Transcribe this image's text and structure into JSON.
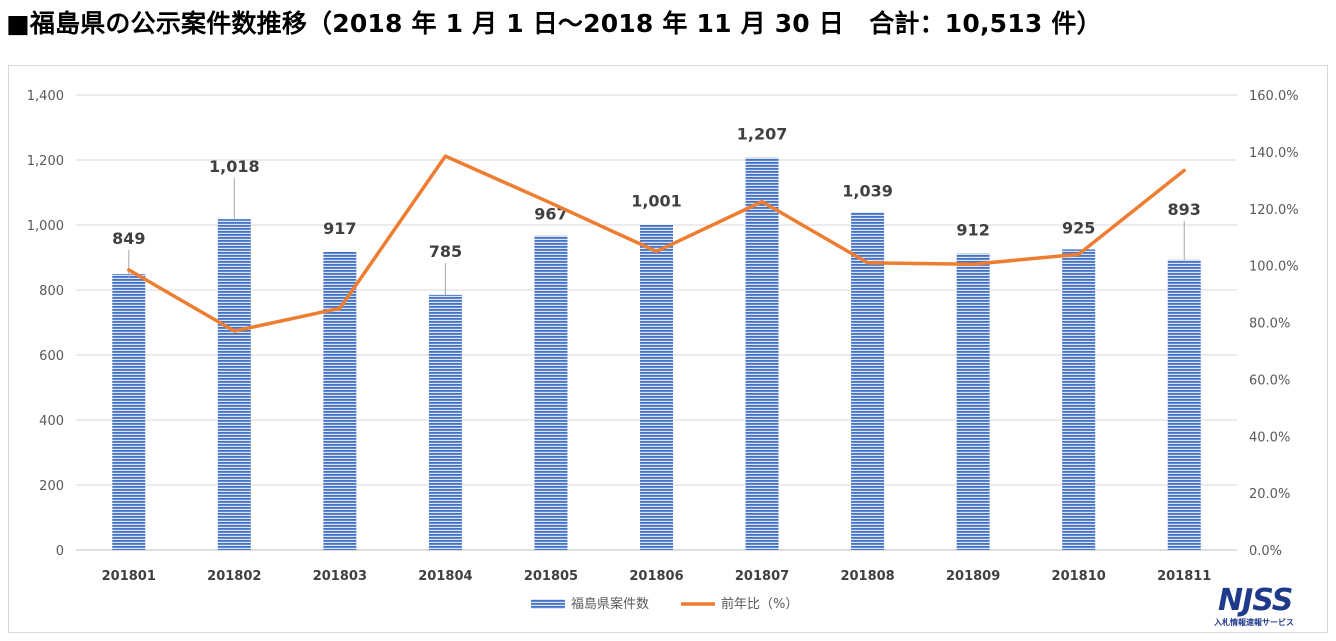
{
  "title": "■福島県の公示案件数推移（2018 年 1 月 1 日～2018 年 11 月 30 日　合計：10,513 件）",
  "logo": {
    "mark": "NJSS",
    "subtitle": "入札情報速報サービス"
  },
  "colors": {
    "bar": "#4472c4",
    "line": "#ed7d31",
    "grid": "#d9d9d9"
  },
  "chart_data": {
    "type": "bar",
    "categories": [
      "201801",
      "201802",
      "201803",
      "201804",
      "201805",
      "201806",
      "201807",
      "201808",
      "201809",
      "201810",
      "201811"
    ],
    "series": [
      {
        "name": "福島県案件数",
        "type": "bar",
        "axis": "left",
        "values": [
          849,
          1018,
          917,
          785,
          967,
          1001,
          1207,
          1039,
          912,
          925,
          893
        ],
        "labels": [
          "849",
          "1,018",
          "917",
          "785",
          "967",
          "1,001",
          "1,207",
          "1,039",
          "912",
          "925",
          "893"
        ]
      },
      {
        "name": "前年比（%）",
        "type": "line",
        "axis": "right",
        "values": [
          98.5,
          77.0,
          85.0,
          138.5,
          122.0,
          105.0,
          122.5,
          101.0,
          100.5,
          104.0,
          133.5
        ]
      }
    ],
    "y_left": {
      "min": 0,
      "max": 1400,
      "ticks": [
        "0",
        "200",
        "400",
        "600",
        "800",
        "1,000",
        "1,200",
        "1,400"
      ]
    },
    "y_right": {
      "min": 0,
      "max": 160,
      "ticks": [
        "0.0%",
        "20.0%",
        "40.0%",
        "60.0%",
        "80.0%",
        "100.0%",
        "120.0%",
        "140.0%",
        "160.0%"
      ]
    },
    "grid": true,
    "legend": "bottom"
  }
}
